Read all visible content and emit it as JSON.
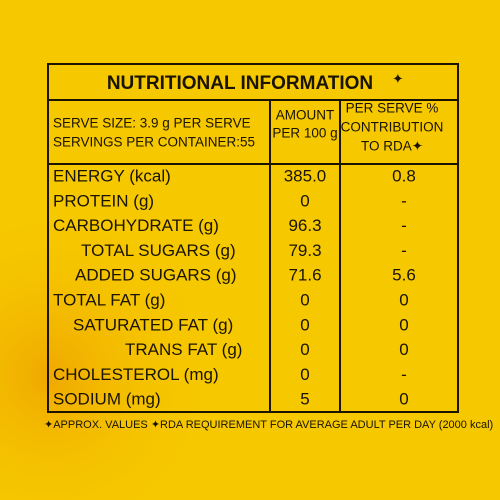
{
  "title": "NUTRITIONAL INFORMATION",
  "title_mark": "✦",
  "header": {
    "serve_size": "SERVE SIZE: 3.9 g PER SERVE",
    "servings": "SERVINGS PER CONTAINER:55",
    "amount": [
      "AMOUNT",
      "PER 100 g"
    ],
    "rda": [
      "PER SERVE %",
      "CONTRIBUTION",
      "TO RDA✦"
    ]
  },
  "table": {
    "rows": [
      [
        "ENERGY (kcal)",
        "385.0",
        "0.8"
      ],
      [
        "PROTEIN (g)",
        "0",
        "-"
      ],
      [
        "CARBOHYDRATE (g)",
        "96.3",
        "-"
      ],
      [
        "TOTAL SUGARS (g)",
        "79.3",
        "-"
      ],
      [
        "ADDED SUGARS (g)",
        "71.6",
        "5.6"
      ],
      [
        "TOTAL FAT (g)",
        "0",
        "0"
      ],
      [
        "SATURATED FAT (g)",
        "0",
        "0"
      ],
      [
        "TRANS FAT (g)",
        "0",
        "0"
      ],
      [
        "CHOLESTEROL (mg)",
        "0",
        "-"
      ],
      [
        "SODIUM (mg)",
        "5",
        "0"
      ]
    ]
  },
  "footnote": "✦APPROX. VALUES  ✦RDA REQUIREMENT FOR AVERAGE ADULT PER DAY (2000 kcal)"
}
